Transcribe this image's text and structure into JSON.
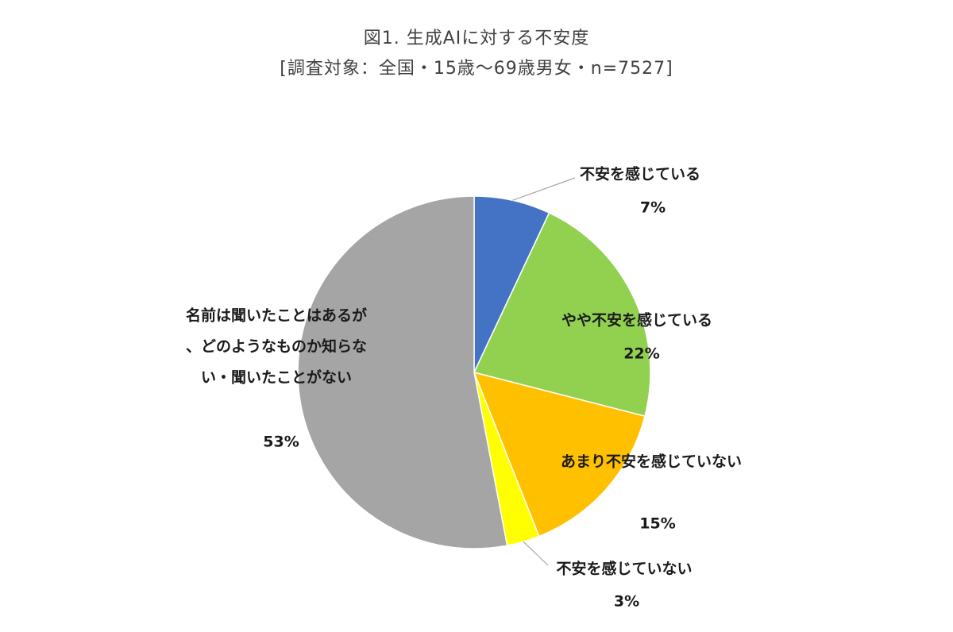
{
  "chart_data": {
    "type": "pie",
    "title": "図1. 生成AIに対する不安度",
    "subtitle": "[調査対象：全国・15歳～69歳男女・n=7527]",
    "slices": [
      {
        "label": "不安を感じている",
        "value": 7,
        "value_label": "7%",
        "color": "#4472c4"
      },
      {
        "label": "やや不安を感じている",
        "value": 22,
        "value_label": "22%",
        "color": "#92d050"
      },
      {
        "label": "あまり不安を感じていない",
        "value": 15,
        "value_label": "15%",
        "color": "#ffc000"
      },
      {
        "label": "不安を感じていない",
        "value": 3,
        "value_label": "3%",
        "color": "#ffff00"
      },
      {
        "label": "名前は聞いたことはあるが、どのようなものか知らない・聞いたことがない",
        "value": 53,
        "value_label": "53%",
        "color": "#a5a5a5"
      }
    ],
    "legend": "none"
  }
}
